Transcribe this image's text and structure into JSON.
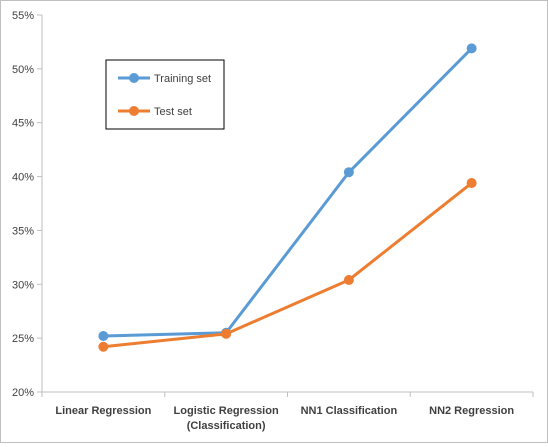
{
  "chart_data": {
    "type": "line",
    "title": "",
    "xlabel": "",
    "ylabel": "",
    "categories": [
      [
        "Linear Regression"
      ],
      [
        "Logistic Regression",
        "(Classification)"
      ],
      [
        "NN1 Classification"
      ],
      [
        "NN2 Regression"
      ]
    ],
    "ylim": [
      0.2,
      0.55
    ],
    "yticks": [
      0.2,
      0.25,
      0.3,
      0.35,
      0.4,
      0.45,
      0.5,
      0.55
    ],
    "ytick_labels": [
      "20%",
      "25%",
      "30%",
      "35%",
      "40%",
      "45%",
      "50%",
      "55%"
    ],
    "grid": false,
    "legend_position": "top-left",
    "series": [
      {
        "name": "Training set",
        "color": "#5b9bd5",
        "values": [
          0.252,
          0.255,
          0.404,
          0.519
        ]
      },
      {
        "name": "Test set",
        "color": "#ed7d31",
        "values": [
          0.242,
          0.254,
          0.304,
          0.394
        ]
      }
    ]
  }
}
